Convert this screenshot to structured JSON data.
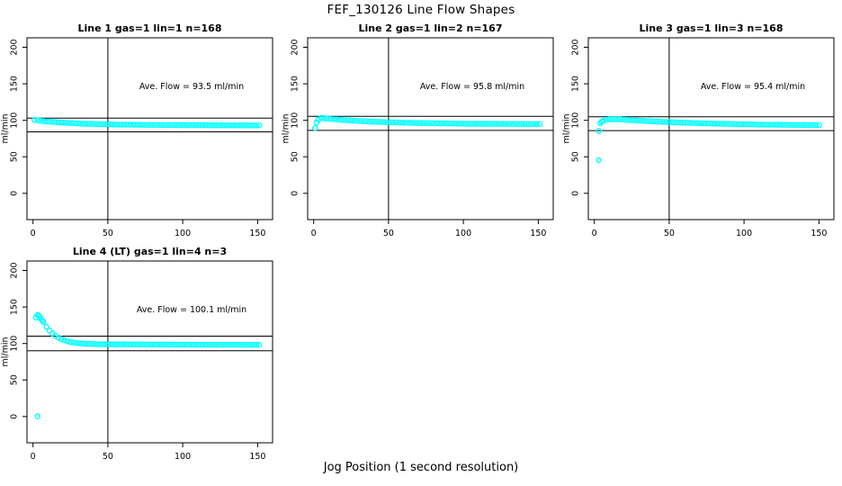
{
  "header": {
    "title": "FEF_130126  Line Flow Shapes"
  },
  "footer": {
    "xlabel": "Jog Position (1 second resolution)"
  },
  "colors": {
    "points": "#00ffff",
    "axis": "#000000",
    "background": "#ffffff"
  },
  "chart_data": [
    {
      "type": "scatter",
      "title": "Line 1 gas=1 lin=1 n=168",
      "annotation": "Ave. Flow =  93.5  ml/min",
      "ave_flow": 93.5,
      "ylabel": "ml/min",
      "xticks": [
        0,
        50,
        100,
        150
      ],
      "yticks": [
        0,
        50,
        100,
        150,
        200
      ],
      "xlim": [
        -4,
        160
      ],
      "ylim": [
        -36,
        213
      ],
      "vline": 50,
      "hlines": [
        102.9,
        84.2
      ],
      "grid": "off",
      "legend": "none",
      "points": [
        [
          1,
          100.4
        ],
        [
          3,
          100.0
        ],
        [
          5,
          99.3
        ],
        [
          7,
          99.0
        ],
        [
          9,
          98.4
        ],
        [
          11,
          98.2
        ],
        [
          13,
          97.7
        ],
        [
          15,
          97.6
        ],
        [
          17,
          97.1
        ],
        [
          19,
          97.0
        ],
        [
          21,
          96.6
        ],
        [
          23,
          96.5
        ],
        [
          25,
          96.1
        ],
        [
          27,
          96.1
        ],
        [
          29,
          95.7
        ],
        [
          31,
          95.7
        ],
        [
          33,
          95.4
        ],
        [
          35,
          95.4
        ],
        [
          37,
          95.0
        ],
        [
          39,
          95.1
        ],
        [
          41,
          94.8
        ],
        [
          43,
          94.9
        ],
        [
          45,
          94.6
        ],
        [
          47,
          94.7
        ],
        [
          49,
          94.4
        ],
        [
          51,
          94.5
        ],
        [
          53,
          94.2
        ],
        [
          55,
          94.3
        ],
        [
          57,
          94.1
        ],
        [
          59,
          94.2
        ],
        [
          61,
          94.0
        ],
        [
          63,
          94.1
        ],
        [
          65,
          93.9
        ],
        [
          67,
          94.0
        ],
        [
          69,
          93.8
        ],
        [
          71,
          93.9
        ],
        [
          73,
          93.7
        ],
        [
          75,
          93.8
        ],
        [
          77,
          93.6
        ],
        [
          79,
          93.7
        ],
        [
          81,
          93.5
        ],
        [
          83,
          93.7
        ],
        [
          85,
          93.5
        ],
        [
          87,
          93.6
        ],
        [
          89,
          93.4
        ],
        [
          91,
          93.6
        ],
        [
          93,
          93.4
        ],
        [
          95,
          93.5
        ],
        [
          97,
          93.3
        ],
        [
          99,
          93.5
        ],
        [
          101,
          93.3
        ],
        [
          103,
          93.4
        ],
        [
          105,
          93.2
        ],
        [
          107,
          93.4
        ],
        [
          109,
          93.2
        ],
        [
          111,
          93.3
        ],
        [
          113,
          93.2
        ],
        [
          115,
          93.3
        ],
        [
          117,
          93.1
        ],
        [
          119,
          93.3
        ],
        [
          121,
          93.1
        ],
        [
          123,
          93.2
        ],
        [
          125,
          93.1
        ],
        [
          127,
          93.2
        ],
        [
          129,
          93.0
        ],
        [
          131,
          93.2
        ],
        [
          133,
          93.0
        ],
        [
          135,
          93.1
        ],
        [
          137,
          93.0
        ],
        [
          139,
          93.1
        ],
        [
          141,
          93.0
        ],
        [
          143,
          93.1
        ],
        [
          145,
          92.9
        ],
        [
          147,
          93.0
        ],
        [
          149,
          92.9
        ],
        [
          151,
          93.0
        ]
      ]
    },
    {
      "type": "scatter",
      "title": "Line 2 gas=1 lin=2 n=167",
      "annotation": "Ave. Flow =  95.8  ml/min",
      "ave_flow": 95.8,
      "ylabel": "ml/min",
      "xticks": [
        0,
        50,
        100,
        150
      ],
      "yticks": [
        0,
        50,
        100,
        150,
        200
      ],
      "xlim": [
        -4,
        160
      ],
      "ylim": [
        -36,
        213
      ],
      "vline": 50,
      "hlines": [
        105.4,
        86.2
      ],
      "grid": "off",
      "legend": "none",
      "points": [
        [
          1,
          89.5
        ],
        [
          2,
          97.0
        ],
        [
          3,
          101.0
        ],
        [
          5,
          103.2
        ],
        [
          7,
          102.9
        ],
        [
          9,
          102.3
        ],
        [
          11,
          102.1
        ],
        [
          13,
          101.5
        ],
        [
          15,
          101.4
        ],
        [
          17,
          100.8
        ],
        [
          19,
          100.7
        ],
        [
          21,
          100.2
        ],
        [
          23,
          100.1
        ],
        [
          25,
          99.7
        ],
        [
          27,
          99.6
        ],
        [
          29,
          99.2
        ],
        [
          31,
          99.1
        ],
        [
          33,
          98.7
        ],
        [
          35,
          98.7
        ],
        [
          37,
          98.3
        ],
        [
          39,
          98.3
        ],
        [
          41,
          98.0
        ],
        [
          43,
          98.0
        ],
        [
          45,
          97.6
        ],
        [
          47,
          97.7
        ],
        [
          49,
          97.3
        ],
        [
          51,
          97.4
        ],
        [
          53,
          97.1
        ],
        [
          55,
          97.2
        ],
        [
          57,
          96.8
        ],
        [
          59,
          96.9
        ],
        [
          61,
          96.6
        ],
        [
          63,
          96.7
        ],
        [
          65,
          96.4
        ],
        [
          67,
          96.5
        ],
        [
          69,
          96.3
        ],
        [
          71,
          96.4
        ],
        [
          73,
          96.1
        ],
        [
          75,
          96.2
        ],
        [
          77,
          96.0
        ],
        [
          79,
          96.1
        ],
        [
          81,
          95.8
        ],
        [
          83,
          96.0
        ],
        [
          85,
          95.7
        ],
        [
          87,
          95.8
        ],
        [
          89,
          95.6
        ],
        [
          91,
          95.7
        ],
        [
          93,
          95.5
        ],
        [
          95,
          95.6
        ],
        [
          97,
          95.4
        ],
        [
          99,
          95.5
        ],
        [
          101,
          95.3
        ],
        [
          103,
          95.4
        ],
        [
          105,
          95.2
        ],
        [
          107,
          95.3
        ],
        [
          109,
          95.1
        ],
        [
          111,
          95.3
        ],
        [
          113,
          95.1
        ],
        [
          115,
          95.2
        ],
        [
          117,
          95.0
        ],
        [
          119,
          95.2
        ],
        [
          121,
          95.0
        ],
        [
          123,
          95.1
        ],
        [
          125,
          94.9
        ],
        [
          127,
          95.1
        ],
        [
          129,
          94.9
        ],
        [
          131,
          95.0
        ],
        [
          133,
          94.9
        ],
        [
          135,
          95.0
        ],
        [
          137,
          94.8
        ],
        [
          139,
          95.0
        ],
        [
          141,
          94.8
        ],
        [
          143,
          94.9
        ],
        [
          145,
          94.8
        ],
        [
          147,
          94.9
        ],
        [
          149,
          94.7
        ],
        [
          151,
          94.9
        ]
      ]
    },
    {
      "type": "scatter",
      "title": "Line 3 gas=1 lin=3 n=168",
      "annotation": "Ave. Flow =  95.4  ml/min",
      "ave_flow": 95.4,
      "ylabel": "ml/min",
      "xticks": [
        0,
        50,
        100,
        150
      ],
      "yticks": [
        0,
        50,
        100,
        150,
        200
      ],
      "xlim": [
        -4,
        160
      ],
      "ylim": [
        -36,
        213
      ],
      "vline": 50,
      "hlines": [
        104.9,
        85.9
      ],
      "grid": "off",
      "legend": "none",
      "points": [
        [
          3,
          45.5
        ],
        [
          3,
          85.5
        ],
        [
          4,
          96.0
        ],
        [
          5,
          98.2
        ],
        [
          6,
          99.4
        ],
        [
          8,
          100.6
        ],
        [
          10,
          101.3
        ],
        [
          12,
          101.6
        ],
        [
          14,
          101.6
        ],
        [
          16,
          101.4
        ],
        [
          18,
          101.2
        ],
        [
          20,
          100.8
        ],
        [
          22,
          100.6
        ],
        [
          24,
          100.3
        ],
        [
          26,
          100.1
        ],
        [
          28,
          99.8
        ],
        [
          30,
          99.6
        ],
        [
          32,
          99.3
        ],
        [
          34,
          99.1
        ],
        [
          36,
          98.9
        ],
        [
          38,
          98.7
        ],
        [
          40,
          98.5
        ],
        [
          42,
          98.3
        ],
        [
          44,
          98.1
        ],
        [
          46,
          97.9
        ],
        [
          48,
          97.7
        ],
        [
          50,
          97.5
        ],
        [
          52,
          97.4
        ],
        [
          54,
          97.2
        ],
        [
          56,
          97.1
        ],
        [
          58,
          96.9
        ],
        [
          60,
          96.7
        ],
        [
          62,
          96.6
        ],
        [
          64,
          96.5
        ],
        [
          66,
          96.3
        ],
        [
          68,
          96.2
        ],
        [
          70,
          96.0
        ],
        [
          72,
          95.9
        ],
        [
          74,
          95.8
        ],
        [
          76,
          95.7
        ],
        [
          78,
          95.6
        ],
        [
          80,
          95.4
        ],
        [
          82,
          95.4
        ],
        [
          84,
          95.3
        ],
        [
          86,
          95.2
        ],
        [
          88,
          95.1
        ],
        [
          90,
          95.0
        ],
        [
          92,
          94.9
        ],
        [
          94,
          94.8
        ],
        [
          96,
          94.7
        ],
        [
          98,
          94.6
        ],
        [
          100,
          94.6
        ],
        [
          102,
          94.5
        ],
        [
          104,
          94.4
        ],
        [
          106,
          94.4
        ],
        [
          108,
          94.3
        ],
        [
          110,
          94.2
        ],
        [
          112,
          94.2
        ],
        [
          114,
          94.1
        ],
        [
          116,
          94.1
        ],
        [
          118,
          94.0
        ],
        [
          120,
          94.0
        ],
        [
          122,
          93.9
        ],
        [
          124,
          93.9
        ],
        [
          126,
          93.8
        ],
        [
          128,
          93.8
        ],
        [
          130,
          93.7
        ],
        [
          132,
          93.7
        ],
        [
          134,
          93.6
        ],
        [
          136,
          93.6
        ],
        [
          138,
          93.5
        ],
        [
          140,
          93.5
        ],
        [
          142,
          93.4
        ],
        [
          144,
          93.4
        ],
        [
          146,
          93.3
        ],
        [
          148,
          93.3
        ],
        [
          150,
          93.2
        ]
      ]
    },
    {
      "type": "scatter",
      "title": "Line 4 (LT) gas=1 lin=4 n=3",
      "annotation": "Ave. Flow =  100.1  ml/min",
      "ave_flow": 100.1,
      "ylabel": "ml/min",
      "xticks": [
        0,
        50,
        100,
        150
      ],
      "yticks": [
        0,
        50,
        100,
        150,
        200
      ],
      "xlim": [
        -4,
        160
      ],
      "ylim": [
        -36,
        213
      ],
      "vline": 50,
      "hlines": [
        110.1,
        90.1
      ],
      "grid": "off",
      "legend": "none",
      "points": [
        [
          3,
          0.2
        ],
        [
          2,
          135.5
        ],
        [
          3,
          139.0
        ],
        [
          4,
          137.8
        ],
        [
          5,
          135.0
        ],
        [
          6,
          131.5
        ],
        [
          7,
          129.5
        ],
        [
          9,
          123.0
        ],
        [
          11,
          117.8
        ],
        [
          13,
          113.6
        ],
        [
          15,
          110.4
        ],
        [
          17,
          107.9
        ],
        [
          19,
          105.9
        ],
        [
          21,
          104.3
        ],
        [
          23,
          103.0
        ],
        [
          25,
          102.1
        ],
        [
          27,
          101.4
        ],
        [
          29,
          100.8
        ],
        [
          31,
          100.3
        ],
        [
          33,
          100.0
        ],
        [
          35,
          99.7
        ],
        [
          37,
          99.5
        ],
        [
          39,
          99.3
        ],
        [
          41,
          99.2
        ],
        [
          43,
          99.1
        ],
        [
          45,
          99.0
        ],
        [
          47,
          98.9
        ],
        [
          49,
          98.9
        ],
        [
          51,
          98.8
        ],
        [
          53,
          98.9
        ],
        [
          55,
          98.7
        ],
        [
          57,
          98.8
        ],
        [
          59,
          98.7
        ],
        [
          61,
          98.8
        ],
        [
          63,
          98.6
        ],
        [
          65,
          98.8
        ],
        [
          67,
          98.6
        ],
        [
          69,
          98.7
        ],
        [
          71,
          98.6
        ],
        [
          73,
          98.7
        ],
        [
          75,
          98.5
        ],
        [
          77,
          98.7
        ],
        [
          79,
          98.5
        ],
        [
          81,
          98.6
        ],
        [
          83,
          98.5
        ],
        [
          85,
          98.6
        ],
        [
          87,
          98.5
        ],
        [
          89,
          98.6
        ],
        [
          91,
          98.4
        ],
        [
          93,
          98.6
        ],
        [
          95,
          98.4
        ],
        [
          97,
          98.5
        ],
        [
          99,
          98.4
        ],
        [
          101,
          98.5
        ],
        [
          103,
          98.4
        ],
        [
          105,
          98.5
        ],
        [
          107,
          98.3
        ],
        [
          109,
          98.5
        ],
        [
          111,
          98.3
        ],
        [
          113,
          98.4
        ],
        [
          115,
          98.3
        ],
        [
          117,
          98.4
        ],
        [
          119,
          98.3
        ],
        [
          121,
          98.4
        ],
        [
          123,
          98.2
        ],
        [
          125,
          98.4
        ],
        [
          127,
          98.2
        ],
        [
          129,
          98.3
        ],
        [
          131,
          98.2
        ],
        [
          133,
          98.3
        ],
        [
          135,
          98.2
        ],
        [
          137,
          98.3
        ],
        [
          139,
          98.2
        ],
        [
          141,
          98.3
        ],
        [
          143,
          98.1
        ],
        [
          145,
          98.3
        ],
        [
          147,
          98.1
        ],
        [
          149,
          98.2
        ],
        [
          151,
          98.2
        ]
      ]
    }
  ]
}
